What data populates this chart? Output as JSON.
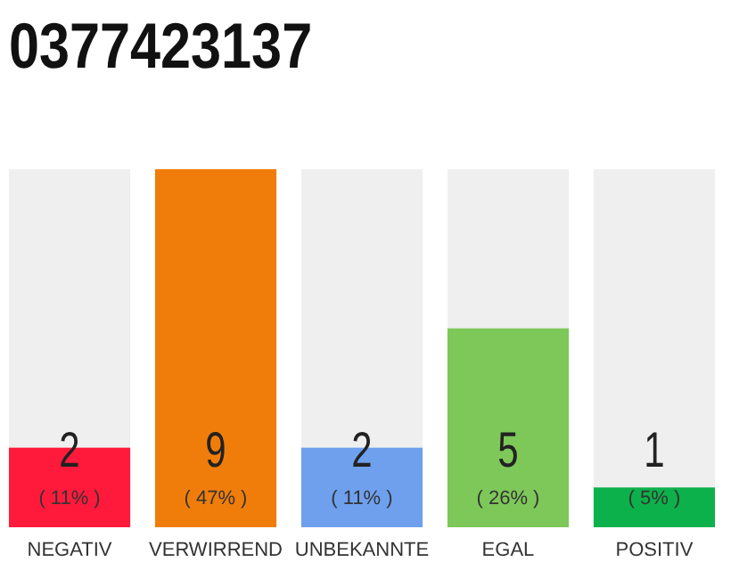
{
  "chart_data": {
    "type": "bar",
    "title": "0377423137",
    "categories": [
      "NEGATIV",
      "VERWIRREND",
      "UNBEKANNTE",
      "EGAL",
      "POSITIV"
    ],
    "values": [
      2,
      9,
      2,
      5,
      1
    ],
    "colors": [
      "#ff1a3c",
      "#f07d0a",
      "#6ea0ee",
      "#7ec85a",
      "#0db14b"
    ],
    "ylim": [
      0,
      9
    ],
    "tick_labels": "x",
    "data_labels": true,
    "annotations": [
      "( 11% )",
      "( 47% )",
      "( 11% )",
      "( 26% )",
      "( 5% )"
    ]
  }
}
